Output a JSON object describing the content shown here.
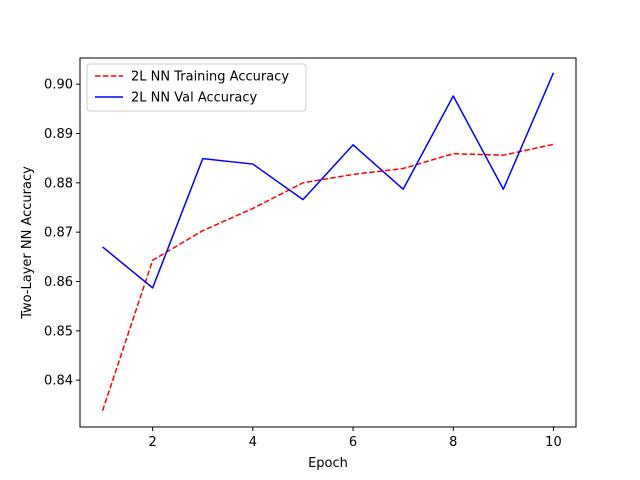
{
  "chart_data": {
    "type": "line",
    "title": "",
    "xlabel": "Epoch",
    "ylabel": "Two-Layer NN Accuracy",
    "xlim": [
      0.55,
      10.45
    ],
    "ylim": [
      0.8305,
      0.9053
    ],
    "xticks": [
      2,
      4,
      6,
      8,
      10
    ],
    "xtick_labels": [
      "2",
      "4",
      "6",
      "8",
      "10"
    ],
    "yticks": [
      0.84,
      0.85,
      0.86,
      0.87,
      0.88,
      0.89,
      0.9
    ],
    "ytick_labels": [
      "0.84",
      "0.85",
      "0.86",
      "0.87",
      "0.88",
      "0.89",
      "0.90"
    ],
    "grid": false,
    "legend_position": "top-left",
    "x": [
      1,
      2,
      3,
      4,
      5,
      6,
      7,
      8,
      9,
      10
    ],
    "series": [
      {
        "name": "2L NN Training Accuracy",
        "color": "#ff0000",
        "style": "dashed",
        "values": [
          0.8338,
          0.8643,
          0.8703,
          0.8748,
          0.88,
          0.8817,
          0.8829,
          0.8859,
          0.8856,
          0.8878
        ]
      },
      {
        "name": "2L NN Val Accuracy",
        "color": "#0000ff",
        "style": "solid",
        "values": [
          0.867,
          0.8587,
          0.8849,
          0.8838,
          0.8766,
          0.8877,
          0.8787,
          0.8976,
          0.8787,
          0.9023
        ]
      }
    ]
  }
}
